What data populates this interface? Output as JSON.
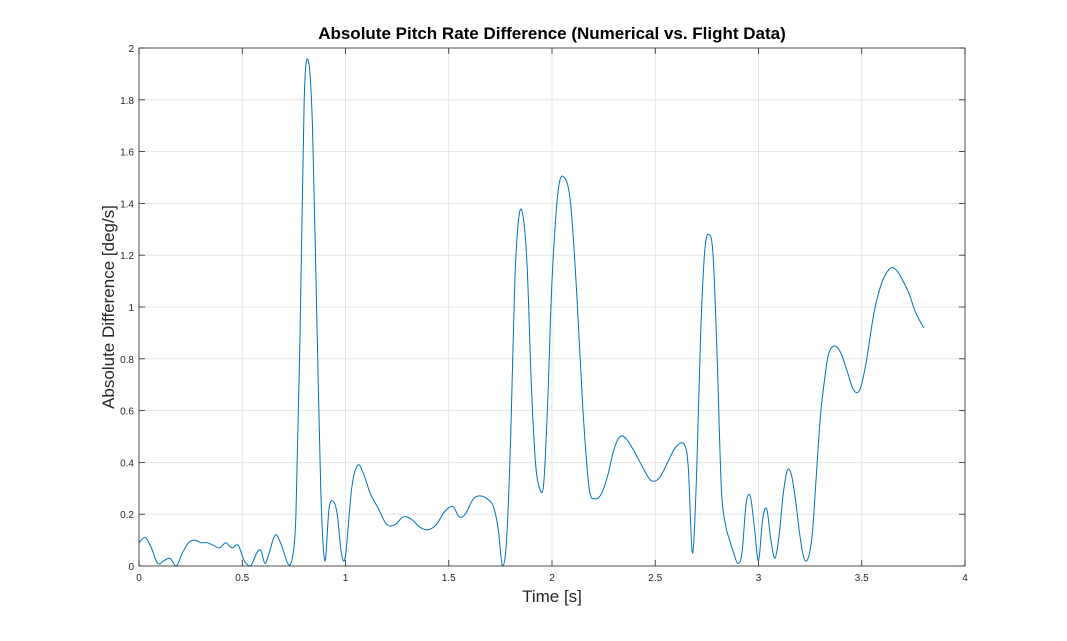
{
  "chart_data": {
    "type": "line",
    "title": "Absolute Pitch Rate Difference (Numerical vs. Flight Data)",
    "xlabel": "Time [s]",
    "ylabel": "Absolute Difference [deg/s]",
    "xlim": [
      0,
      4
    ],
    "ylim": [
      0,
      2
    ],
    "xticks": [
      0,
      0.5,
      1,
      1.5,
      2,
      2.5,
      3,
      3.5,
      4
    ],
    "yticks": [
      0,
      0.2,
      0.4,
      0.6,
      0.8,
      1,
      1.2,
      1.4,
      1.6,
      1.8,
      2
    ],
    "xtick_labels": [
      "0",
      "0.5",
      "1",
      "1.5",
      "2",
      "2.5",
      "3",
      "3.5",
      "4"
    ],
    "ytick_labels": [
      "0",
      "0.2",
      "0.4",
      "0.6",
      "0.8",
      "1",
      "1.2",
      "1.4",
      "1.6",
      "1.8",
      "2"
    ],
    "grid": true,
    "line_color": "#0072BD",
    "series": [
      {
        "x": [
          0,
          0.03,
          0.06,
          0.09,
          0.12,
          0.15,
          0.18,
          0.21,
          0.24,
          0.27,
          0.3,
          0.33,
          0.36,
          0.39,
          0.42,
          0.45,
          0.48,
          0.51,
          0.54,
          0.57,
          0.59,
          0.61,
          0.63,
          0.66,
          0.69,
          0.72,
          0.74,
          0.76,
          0.78,
          0.8,
          0.82,
          0.84,
          0.86,
          0.88,
          0.9,
          0.92,
          0.94,
          0.96,
          0.98,
          1.0,
          1.03,
          1.06,
          1.09,
          1.12,
          1.16,
          1.2,
          1.24,
          1.28,
          1.32,
          1.36,
          1.4,
          1.44,
          1.48,
          1.52,
          1.55,
          1.58,
          1.62,
          1.66,
          1.7,
          1.72,
          1.74,
          1.76,
          1.78,
          1.8,
          1.82,
          1.84,
          1.86,
          1.88,
          1.9,
          1.92,
          1.94,
          1.96,
          1.98,
          2.0,
          2.03,
          2.06,
          2.09,
          2.12,
          2.15,
          2.18,
          2.21,
          2.24,
          2.27,
          2.3,
          2.33,
          2.36,
          2.4,
          2.44,
          2.48,
          2.52,
          2.56,
          2.6,
          2.64,
          2.66,
          2.68,
          2.7,
          2.72,
          2.74,
          2.76,
          2.78,
          2.8,
          2.82,
          2.84,
          2.86,
          2.88,
          2.9,
          2.92,
          2.94,
          2.96,
          2.98,
          3.0,
          3.02,
          3.04,
          3.06,
          3.08,
          3.1,
          3.12,
          3.14,
          3.16,
          3.18,
          3.2,
          3.22,
          3.24,
          3.26,
          3.28,
          3.3,
          3.32,
          3.34,
          3.37,
          3.4,
          3.43,
          3.46,
          3.49,
          3.52,
          3.56,
          3.6,
          3.64,
          3.67,
          3.7,
          3.73,
          3.76,
          3.8
        ],
        "y": [
          0.09,
          0.11,
          0.07,
          0.01,
          0.02,
          0.03,
          0.0,
          0.05,
          0.09,
          0.1,
          0.09,
          0.09,
          0.08,
          0.07,
          0.09,
          0.07,
          0.08,
          0.02,
          0.0,
          0.05,
          0.06,
          0.01,
          0.05,
          0.12,
          0.08,
          0.01,
          0.02,
          0.2,
          0.9,
          1.8,
          1.95,
          1.7,
          1.0,
          0.3,
          0.02,
          0.22,
          0.25,
          0.2,
          0.05,
          0.04,
          0.3,
          0.39,
          0.35,
          0.28,
          0.22,
          0.16,
          0.16,
          0.19,
          0.18,
          0.15,
          0.14,
          0.16,
          0.21,
          0.23,
          0.19,
          0.2,
          0.26,
          0.27,
          0.25,
          0.22,
          0.14,
          0.0,
          0.1,
          0.5,
          1.1,
          1.35,
          1.35,
          1.15,
          0.7,
          0.4,
          0.3,
          0.32,
          0.65,
          1.1,
          1.45,
          1.5,
          1.4,
          1.05,
          0.6,
          0.3,
          0.26,
          0.28,
          0.35,
          0.45,
          0.5,
          0.49,
          0.44,
          0.38,
          0.33,
          0.34,
          0.4,
          0.46,
          0.47,
          0.38,
          0.05,
          0.35,
          0.9,
          1.22,
          1.28,
          1.2,
          0.8,
          0.3,
          0.16,
          0.1,
          0.05,
          0.01,
          0.05,
          0.24,
          0.27,
          0.15,
          0.02,
          0.18,
          0.22,
          0.1,
          0.03,
          0.12,
          0.28,
          0.37,
          0.35,
          0.25,
          0.12,
          0.03,
          0.03,
          0.12,
          0.35,
          0.58,
          0.72,
          0.82,
          0.85,
          0.82,
          0.75,
          0.68,
          0.68,
          0.78,
          0.98,
          1.1,
          1.15,
          1.14,
          1.1,
          1.05,
          0.98,
          0.92
        ]
      }
    ]
  }
}
